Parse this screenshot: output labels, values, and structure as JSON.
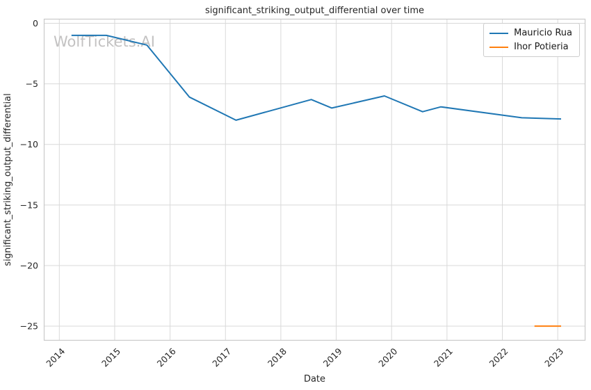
{
  "watermark": "WolfTickets.AI",
  "chart_data": {
    "type": "line",
    "title": "significant_striking_output_differential over time",
    "xlabel": "Date",
    "ylabel": "significant_striking_output_differential",
    "x_unit": "decimal_year",
    "xlim": [
      2013.72,
      2023.5
    ],
    "ylim": [
      -26.2,
      0.37
    ],
    "grid": true,
    "legend_position": "upper right",
    "background": "#ffffff",
    "grid_color": "#d9d9d9",
    "spine_color": "#c9c9c9",
    "xticks": {
      "rotation": 45,
      "values": [
        2014,
        2015,
        2016,
        2017,
        2018,
        2019,
        2020,
        2021,
        2022,
        2023
      ],
      "labels": [
        "2014",
        "2015",
        "2016",
        "2017",
        "2018",
        "2019",
        "2020",
        "2021",
        "2022",
        "2023"
      ]
    },
    "yticks": {
      "values": [
        0,
        -5,
        -10,
        -15,
        -20,
        -25
      ],
      "labels": [
        "0",
        "−5",
        "−10",
        "−15",
        "−20",
        "−25"
      ]
    },
    "series": [
      {
        "name": "Mauricio Rua",
        "color": "#1f77b4",
        "points": [
          [
            2014.22,
            -1.0
          ],
          [
            2014.85,
            -1.0
          ],
          [
            2015.58,
            -1.8
          ],
          [
            2016.35,
            -6.1
          ],
          [
            2017.19,
            -8.0
          ],
          [
            2018.55,
            -6.3
          ],
          [
            2018.92,
            -7.0
          ],
          [
            2019.87,
            -6.0
          ],
          [
            2020.56,
            -7.3
          ],
          [
            2020.89,
            -6.9
          ],
          [
            2022.35,
            -7.8
          ],
          [
            2023.06,
            -7.9
          ]
        ]
      },
      {
        "name": "Ihor Potieria",
        "color": "#ff7f0e",
        "points": [
          [
            2022.58,
            -25.0
          ],
          [
            2023.06,
            -25.0
          ]
        ]
      }
    ]
  }
}
